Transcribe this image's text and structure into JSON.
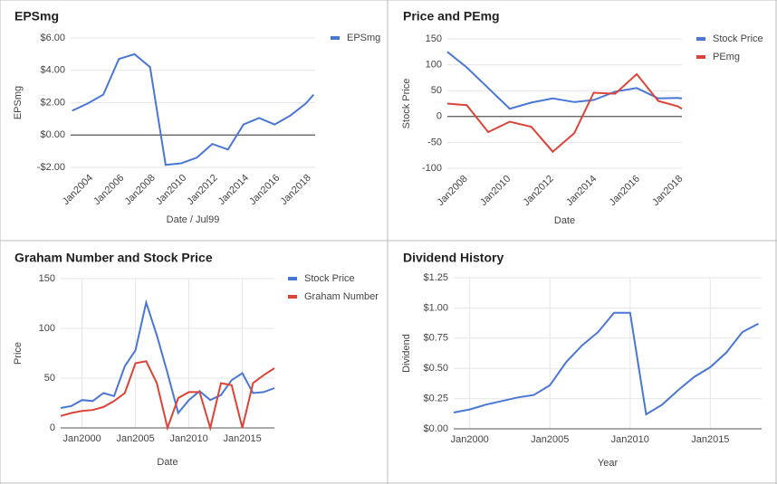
{
  "chart_data": [
    {
      "type": "line",
      "title": "EPSmg",
      "x_label": "Date / Jul99",
      "y_label": "EPSmg",
      "grid": true,
      "xgrid": false,
      "rotate_xticks": true,
      "legend": "right",
      "x": [
        2003,
        2004,
        2005,
        2006,
        2007,
        2008,
        2009,
        2010,
        2011,
        2012,
        2013,
        2014,
        2015,
        2016,
        2017,
        2018,
        2018.5
      ],
      "series": [
        {
          "name": "EPSmg",
          "color": "#4a76d4",
          "values": [
            1.5,
            1.95,
            2.5,
            4.7,
            5.0,
            4.2,
            -1.85,
            -1.75,
            -1.4,
            -0.55,
            -0.9,
            0.65,
            1.05,
            0.65,
            1.2,
            1.95,
            2.5
          ]
        }
      ],
      "xlim": [
        2002.9,
        2018.6
      ],
      "xticks": [
        {
          "value": 2004,
          "label": "Jan2004"
        },
        {
          "value": 2006,
          "label": "Jan2006"
        },
        {
          "value": 2008,
          "label": "Jan2008"
        },
        {
          "value": 2010,
          "label": "Jan2010"
        },
        {
          "value": 2012,
          "label": "Jan2012"
        },
        {
          "value": 2014,
          "label": "Jan2014"
        },
        {
          "value": 2016,
          "label": "Jan2016"
        },
        {
          "value": 2018,
          "label": "Jan2018"
        }
      ],
      "ylim": [
        -2,
        6
      ],
      "yticks": [
        {
          "value": -2,
          "label": "-$2.00"
        },
        {
          "value": 0,
          "label": "$0.00"
        },
        {
          "value": 2,
          "label": "$2.00"
        },
        {
          "value": 4,
          "label": "$4.00"
        },
        {
          "value": 6,
          "label": "$6.00"
        }
      ]
    },
    {
      "type": "line",
      "title": "Price and PEmg",
      "x_label": "Date",
      "y_label": "Stock Price",
      "grid": true,
      "xgrid": false,
      "rotate_xticks": true,
      "legend": "right",
      "x": [
        2007.3,
        2008.2,
        2009.2,
        2010.2,
        2011.2,
        2012.2,
        2013.2,
        2014.1,
        2015.1,
        2016.1,
        2017.1,
        2018,
        2018.2
      ],
      "series": [
        {
          "name": "Stock Price",
          "color": "#4a76d4",
          "values": [
            125,
            95,
            55,
            15,
            27,
            35,
            28,
            32,
            48,
            55,
            35,
            36,
            35
          ]
        },
        {
          "name": "PEmg",
          "color": "#db4437",
          "values": [
            25,
            22,
            -30,
            -10,
            -20,
            -68,
            -32,
            46,
            44,
            82,
            30,
            20,
            15
          ]
        }
      ],
      "xlim": [
        2007.3,
        2018.2
      ],
      "xticks": [
        {
          "value": 2008,
          "label": "Jan2008"
        },
        {
          "value": 2010,
          "label": "Jan2010"
        },
        {
          "value": 2012,
          "label": "Jan2012"
        },
        {
          "value": 2014,
          "label": "Jan2014"
        },
        {
          "value": 2016,
          "label": "Jan2016"
        },
        {
          "value": 2018,
          "label": "Jan2018"
        }
      ],
      "ylim": [
        -100,
        150
      ],
      "yticks": [
        -100,
        -50,
        0,
        50,
        100,
        150
      ]
    },
    {
      "type": "line",
      "title": "Graham Number and Stock Price",
      "x_label": "Date",
      "y_label": "Price",
      "grid": true,
      "xgrid": true,
      "rotate_xticks": false,
      "legend": "right",
      "x": [
        1998,
        1999,
        2000,
        2001,
        2002,
        2003,
        2004,
        2005,
        2006,
        2007,
        2008,
        2009,
        2010,
        2011,
        2012,
        2013,
        2014,
        2015,
        2016,
        2017,
        2018
      ],
      "series": [
        {
          "name": "Stock Price",
          "color": "#4a76d4",
          "values": [
            20,
            22,
            28,
            27,
            35,
            32,
            62,
            78,
            126,
            93,
            55,
            15,
            28,
            37,
            28,
            33,
            48,
            55,
            35,
            36,
            40
          ]
        },
        {
          "name": "Graham Number",
          "color": "#db4437",
          "values": [
            12,
            15,
            17,
            18,
            21,
            27,
            35,
            65,
            67,
            45,
            0,
            30,
            36,
            36,
            0,
            45,
            43,
            0,
            45,
            53,
            60
          ]
        }
      ],
      "xlim": [
        1998,
        2018
      ],
      "xticks": [
        {
          "value": 2000,
          "label": "Jan2000"
        },
        {
          "value": 2005,
          "label": "Jan2005"
        },
        {
          "value": 2010,
          "label": "Jan2010"
        },
        {
          "value": 2015,
          "label": "Jan2015"
        }
      ],
      "ylim": [
        0,
        150
      ],
      "yticks": [
        0,
        50,
        100,
        150
      ]
    },
    {
      "type": "line",
      "title": "Dividend History",
      "x_label": "Year",
      "y_label": "Dividend",
      "grid": true,
      "xgrid": true,
      "rotate_xticks": false,
      "legend": "none",
      "x": [
        1999,
        2000,
        2001,
        2002,
        2003,
        2004,
        2005,
        2006,
        2007,
        2008,
        2009,
        2010,
        2011,
        2012,
        2013,
        2014,
        2015,
        2016,
        2017,
        2018
      ],
      "series": [
        {
          "name": "Dividend",
          "color": "#4a76d4",
          "values": [
            0.135,
            0.16,
            0.2,
            0.23,
            0.26,
            0.28,
            0.36,
            0.55,
            0.69,
            0.8,
            0.96,
            0.96,
            0.12,
            0.2,
            0.32,
            0.43,
            0.51,
            0.63,
            0.8,
            0.87
          ]
        }
      ],
      "xlim": [
        1999,
        2018.2
      ],
      "xticks": [
        {
          "value": 2000,
          "label": "Jan2000"
        },
        {
          "value": 2005,
          "label": "Jan2005"
        },
        {
          "value": 2010,
          "label": "Jan2010"
        },
        {
          "value": 2015,
          "label": "Jan2015"
        }
      ],
      "ylim": [
        0,
        1.25
      ],
      "yticks": [
        {
          "value": 0,
          "label": "$0.00"
        },
        {
          "value": 0.25,
          "label": "$0.25"
        },
        {
          "value": 0.5,
          "label": "$0.50"
        },
        {
          "value": 0.75,
          "label": "$0.75"
        },
        {
          "value": 1,
          "label": "$1.00"
        },
        {
          "value": 1.25,
          "label": "$1.25"
        }
      ]
    }
  ]
}
